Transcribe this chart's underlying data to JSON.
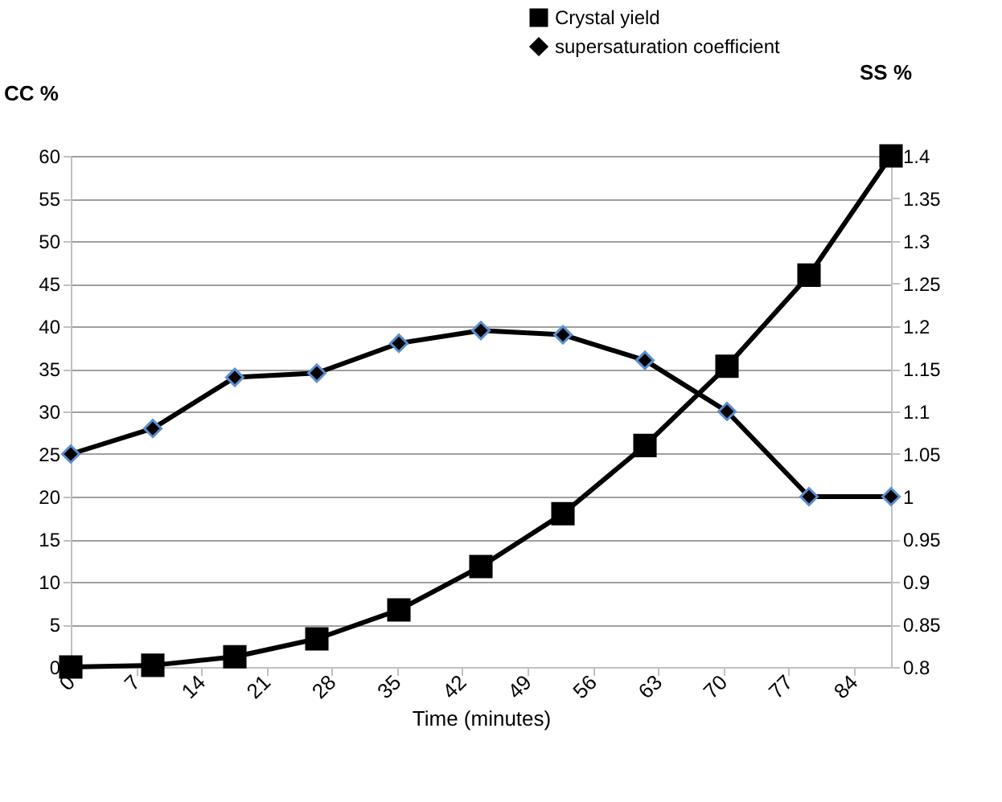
{
  "chart_data": {
    "type": "line",
    "xlabel": "Time (minutes)",
    "ylabel": "CC %",
    "y2label": "SS %",
    "series": [
      {
        "name": "Crystal yield",
        "color": "#000000",
        "marker": "square",
        "x": [
          0,
          8.8,
          17.6,
          26.4,
          35.2,
          44,
          52.8,
          61.6,
          70.4,
          79.2,
          88
        ],
        "values": [
          0,
          0.2,
          1.2,
          3.3,
          6.7,
          11.8,
          18,
          26,
          35.3,
          46,
          60
        ]
      },
      {
        "name": "supersaturation coefficient",
        "color": "#000000",
        "marker": "diamond",
        "axis": "y2",
        "x": [
          0,
          8.8,
          17.6,
          26.4,
          35.2,
          44,
          52.8,
          61.6,
          70.4,
          79.2,
          88
        ],
        "values": [
          1.05,
          1.08,
          1.14,
          1.145,
          1.18,
          1.195,
          1.19,
          1.16,
          1.1,
          1.0,
          1.0
        ]
      }
    ],
    "xlim": [
      0,
      88
    ],
    "xticks": [
      0,
      7,
      14,
      21,
      28,
      35,
      42,
      49,
      56,
      63,
      70,
      77,
      84
    ],
    "ylim": [
      0,
      60
    ],
    "yticks": [
      0,
      5,
      10,
      15,
      20,
      25,
      30,
      35,
      40,
      45,
      50,
      55,
      60
    ],
    "y2lim": [
      0.8,
      1.4
    ],
    "y2ticks": [
      0.8,
      0.85,
      0.9,
      0.95,
      1,
      1.05,
      1.1,
      1.15,
      1.2,
      1.25,
      1.3,
      1.35,
      1.4
    ],
    "grid": "y",
    "legend": "top"
  }
}
